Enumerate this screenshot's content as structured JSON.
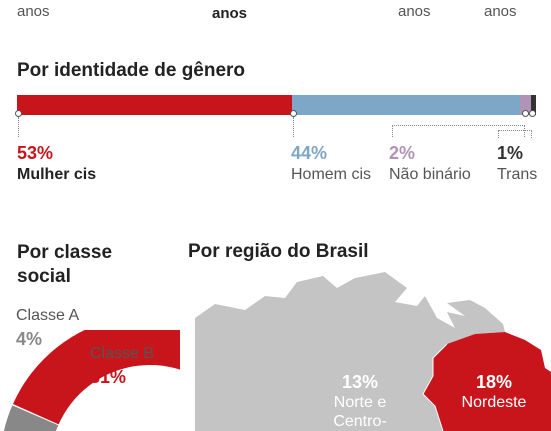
{
  "top_row": {
    "labels": [
      "anos",
      "anos",
      "anos",
      "anos"
    ]
  },
  "gender": {
    "title": "Por identidade de gênero",
    "segments": [
      {
        "pct": "53%",
        "label": "Mulher cis",
        "value": 53,
        "color": "#c8151b"
      },
      {
        "pct": "44%",
        "label": "Homem cis",
        "value": 44,
        "color": "#7ea6c6"
      },
      {
        "pct": "2%",
        "label": "Não binário",
        "value": 2,
        "color": "#b293b8"
      },
      {
        "pct": "1%",
        "label": "Trans",
        "value": 1,
        "color": "#333333"
      }
    ]
  },
  "social_class": {
    "title_line1": "Por classe",
    "title_line2": "social",
    "items": [
      {
        "label": "Classe A",
        "pct": "4%",
        "value": 4,
        "color": "#888888"
      },
      {
        "label": "Classe B",
        "pct": "31%",
        "value": 31,
        "color": "#c8151b"
      }
    ]
  },
  "region": {
    "title": "Por região do Brasil",
    "areas": [
      {
        "pct": "13%",
        "label_line1": "Norte e",
        "label_line2": "Centro-Oeste",
        "color": "#c4c4c4"
      },
      {
        "pct": "18%",
        "label_line1": "Nordeste",
        "label_line2": "",
        "color": "#c8151b"
      }
    ]
  },
  "colors": {
    "red": "#c8151b",
    "blue": "#7ea6c6",
    "purple": "#b293b8",
    "dark": "#333333",
    "grey": "#888888"
  }
}
